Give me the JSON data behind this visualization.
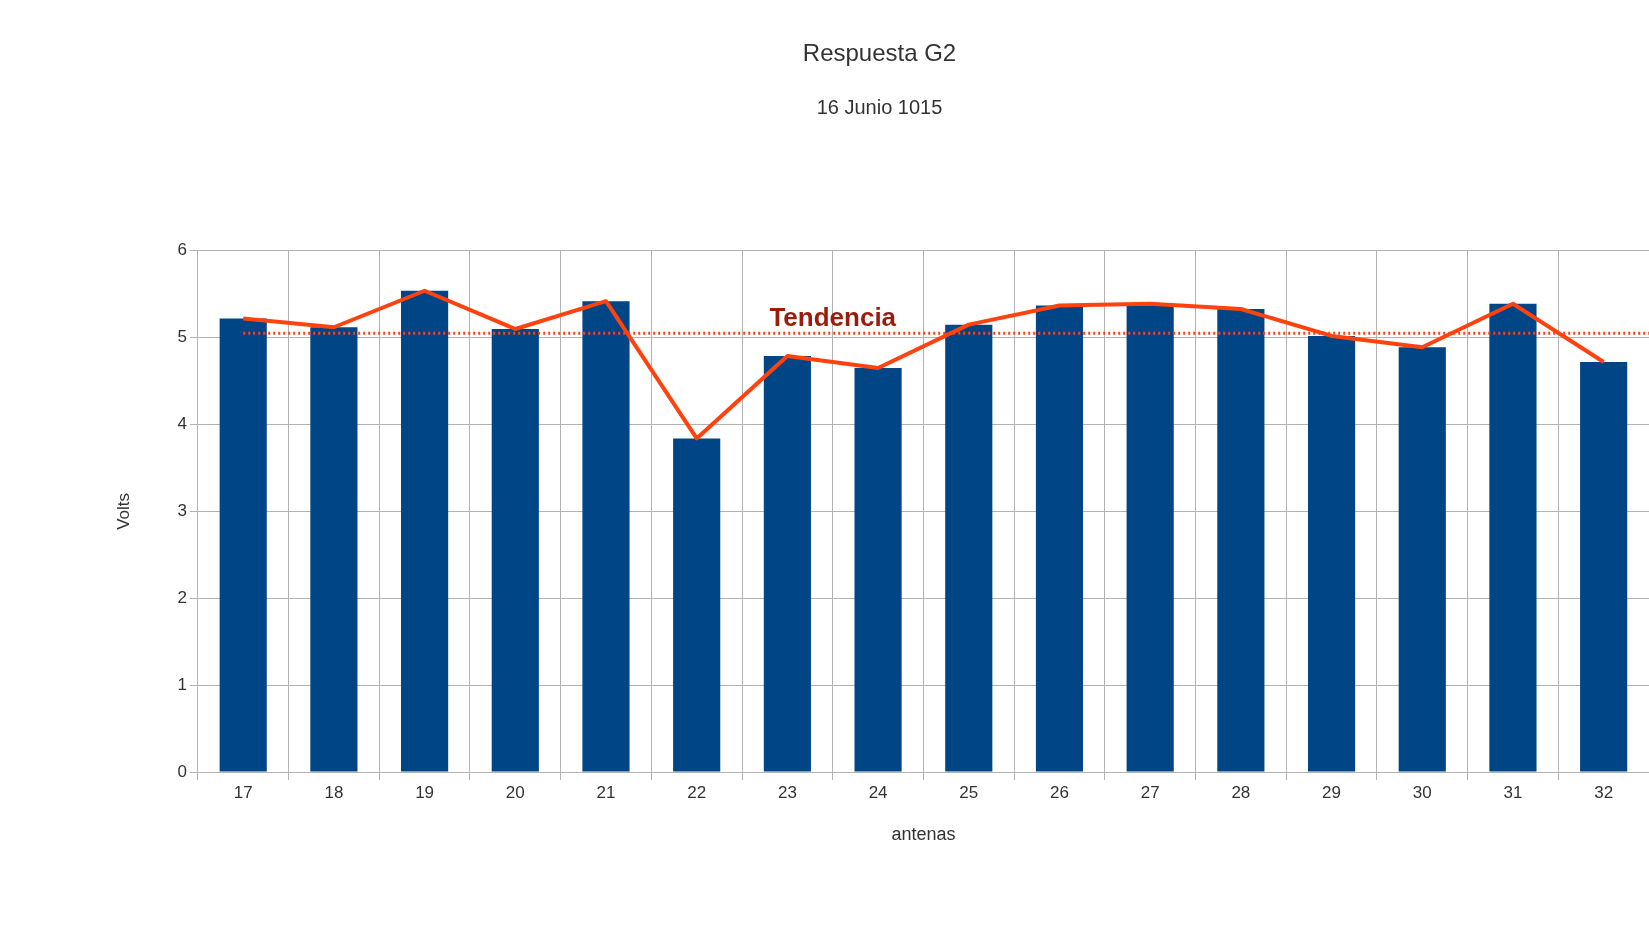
{
  "chart_data": {
    "type": "bar",
    "title": "Respuesta G2",
    "subtitle": "16 Junio 1015",
    "xlabel": "antenas",
    "ylabel": "Volts",
    "categories": [
      "17",
      "18",
      "19",
      "20",
      "21",
      "22",
      "23",
      "24",
      "25",
      "26",
      "27",
      "28",
      "29",
      "30",
      "31",
      "32"
    ],
    "series": [
      {
        "color": "#004586",
        "values": [
          5.22,
          5.12,
          5.54,
          5.1,
          5.42,
          3.84,
          4.79,
          4.65,
          5.15,
          5.37,
          5.39,
          5.33,
          5.02,
          4.89,
          5.39,
          4.72
        ]
      },
      {
        "type": "line",
        "color": "#ff420e",
        "values": [
          5.22,
          5.12,
          5.54,
          5.1,
          5.42,
          3.84,
          4.79,
          4.65,
          5.15,
          5.37,
          5.39,
          5.33,
          5.02,
          4.89,
          5.39,
          4.72
        ]
      }
    ],
    "ylim": [
      0,
      6
    ],
    "yticks": [
      0,
      1,
      2,
      3,
      4,
      5,
      6
    ],
    "grid": true,
    "legend": false,
    "marker": "none",
    "ref_lines": [
      {
        "axis": "y",
        "value": 5.05,
        "label": "Tendencia",
        "color": "#ff420e",
        "line_style": "dotted"
      }
    ]
  }
}
